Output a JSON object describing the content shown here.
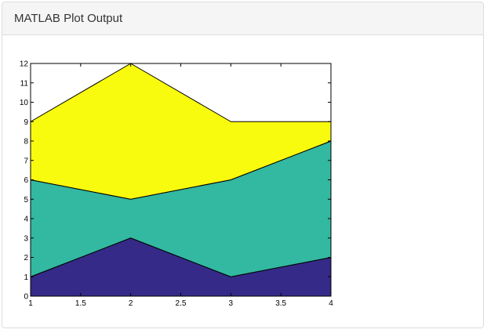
{
  "panel": {
    "title": "MATLAB Plot Output"
  },
  "chart_data": {
    "type": "area",
    "stacked": true,
    "x": [
      1,
      2,
      3,
      4
    ],
    "series": [
      {
        "values": [
          1,
          3,
          1,
          2
        ],
        "color": "#352a87"
      },
      {
        "values": [
          5,
          2,
          5,
          6
        ],
        "color": "#33b8a1"
      },
      {
        "values": [
          3,
          7,
          3,
          1
        ],
        "color": "#f9fb0e"
      }
    ],
    "xlim": [
      1,
      4
    ],
    "ylim": [
      0,
      12
    ],
    "xticks": [
      1,
      1.5,
      2,
      2.5,
      3,
      3.5,
      4
    ],
    "yticks": [
      0,
      1,
      2,
      3,
      4,
      5,
      6,
      7,
      8,
      9,
      10,
      11,
      12
    ],
    "title": "",
    "xlabel": "",
    "ylabel": "",
    "grid": false,
    "legend": false
  }
}
